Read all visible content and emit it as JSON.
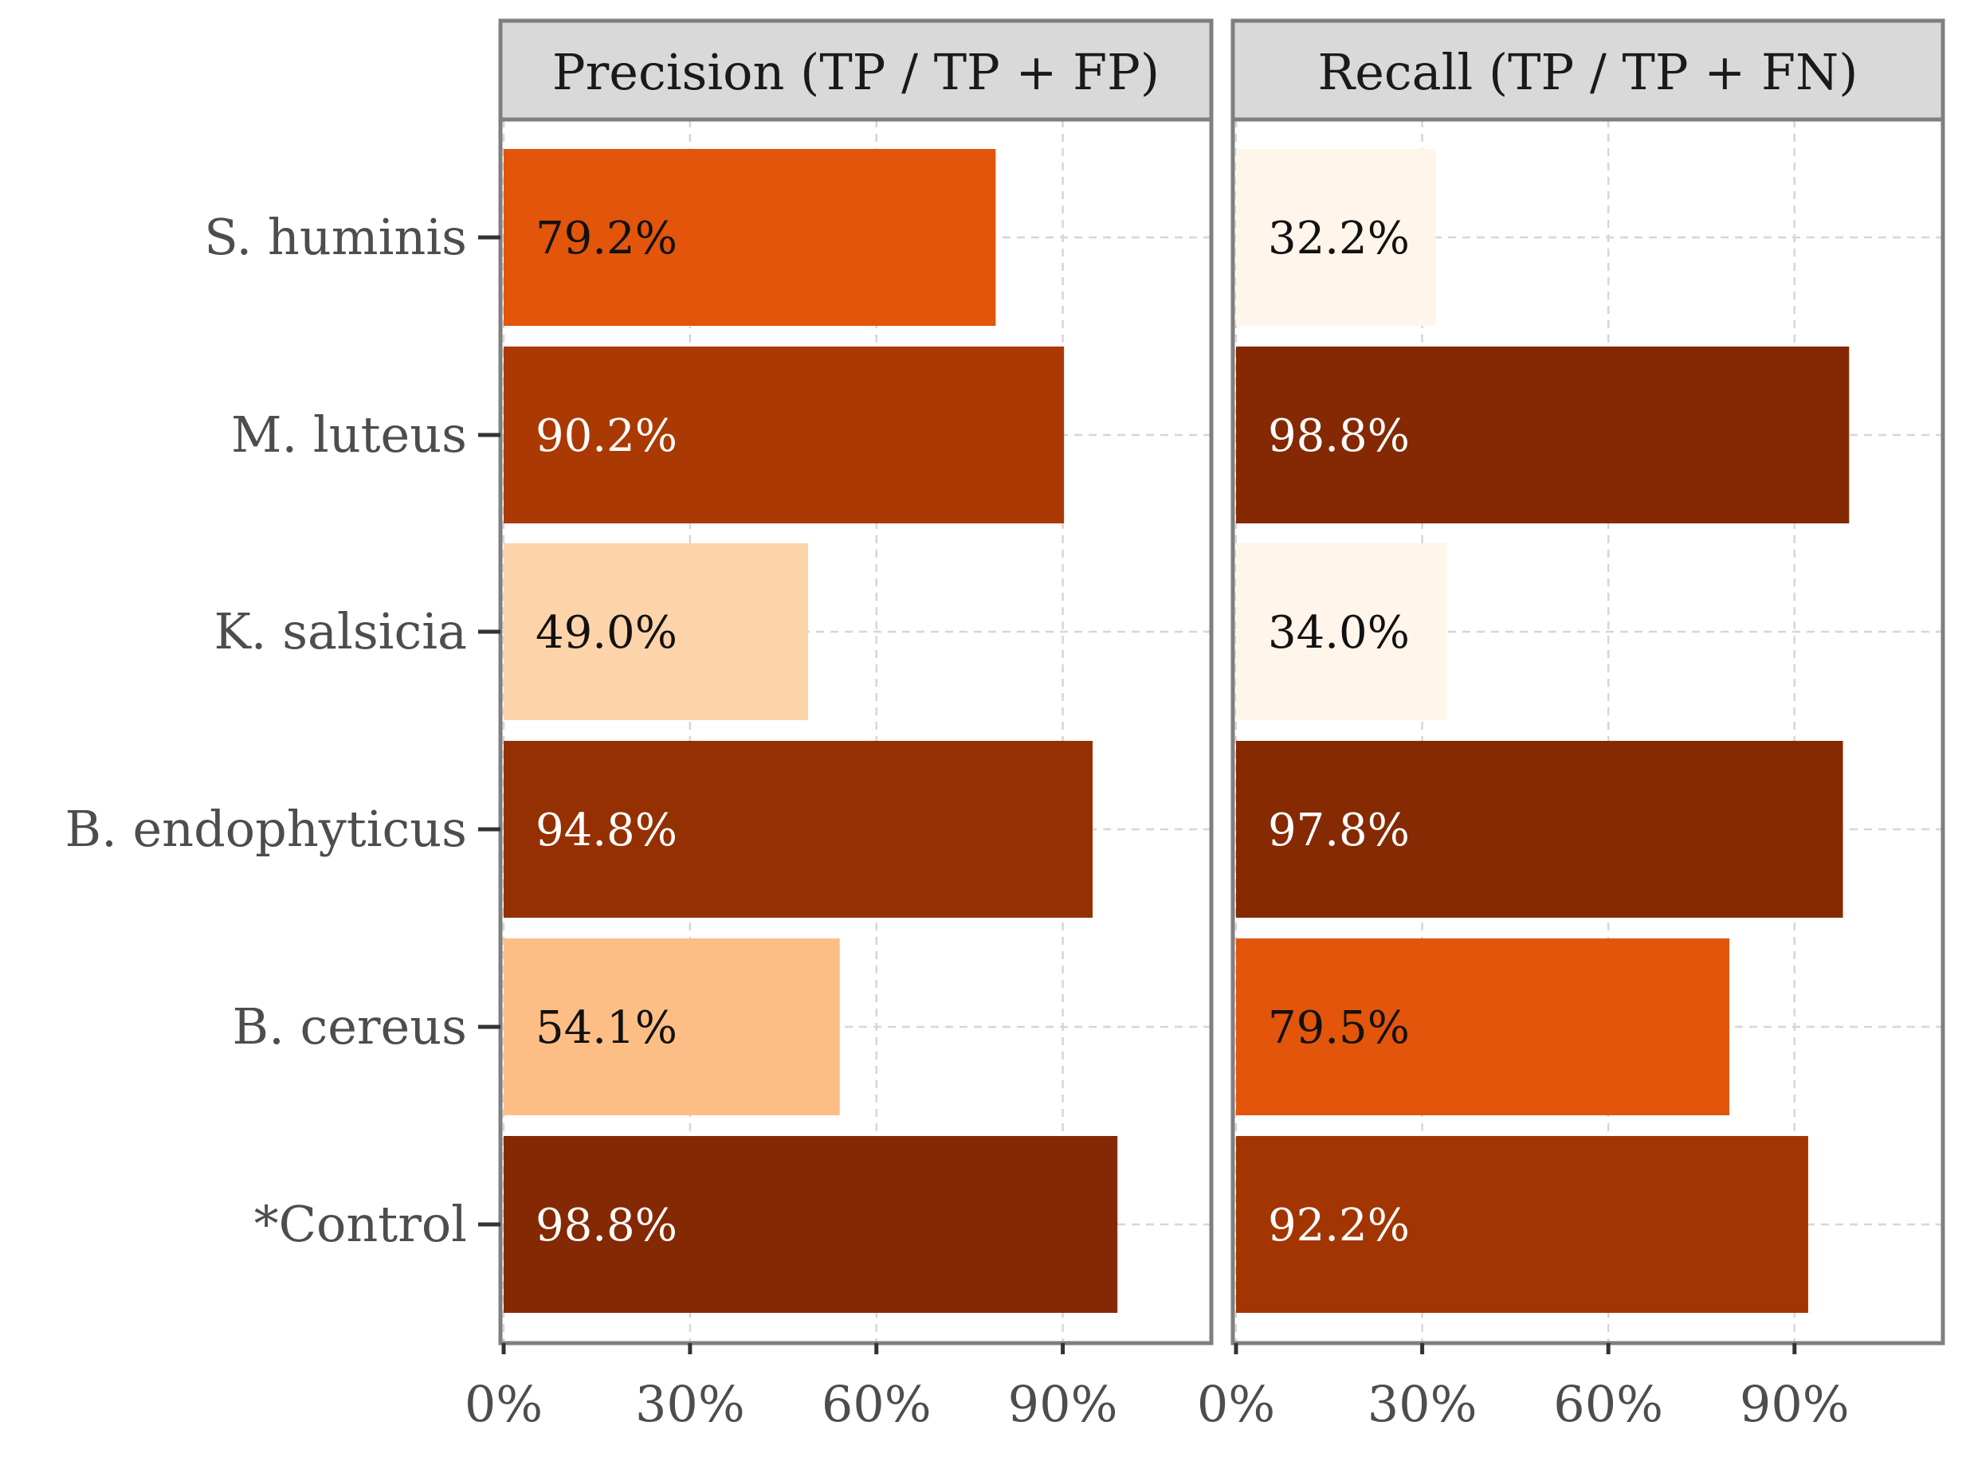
{
  "chart_data": {
    "type": "bar",
    "orientation": "horizontal",
    "categories": [
      "S. huminis",
      "M. luteus",
      "K. salsicia",
      "B. endophyticus",
      "B. cereus",
      "*Control"
    ],
    "panels": [
      {
        "title": "Precision (TP / TP + FP)",
        "values": [
          79.2,
          90.2,
          49.0,
          94.8,
          54.1,
          98.8
        ],
        "labels": [
          "79.2%",
          "90.2%",
          "49.0%",
          "94.8%",
          "54.1%",
          "98.8%"
        ],
        "colors": [
          "#e2550a",
          "#ab3903",
          "#fdd3a9",
          "#953002",
          "#fdbe85",
          "#842904"
        ],
        "label_colors": [
          "#111111",
          "#ffffff",
          "#111111",
          "#ffffff",
          "#111111",
          "#ffffff"
        ]
      },
      {
        "title": "Recall (TP / TP + FN)",
        "values": [
          32.2,
          98.8,
          34.0,
          97.8,
          79.5,
          92.2
        ],
        "labels": [
          "32.2%",
          "98.8%",
          "34.0%",
          "97.8%",
          "79.5%",
          "92.2%"
        ],
        "colors": [
          "#fff5eb",
          "#842904",
          "#fff5eb",
          "#862a04",
          "#e2550a",
          "#a33503"
        ],
        "label_colors": [
          "#111111",
          "#ffffff",
          "#111111",
          "#ffffff",
          "#111111",
          "#ffffff"
        ]
      }
    ],
    "x_ticks": [
      0,
      30,
      60,
      90
    ],
    "x_tick_labels": [
      "0%",
      "30%",
      "60%",
      "90%"
    ],
    "xlim": [
      0,
      113.4
    ],
    "grid": true,
    "legend": "none"
  }
}
